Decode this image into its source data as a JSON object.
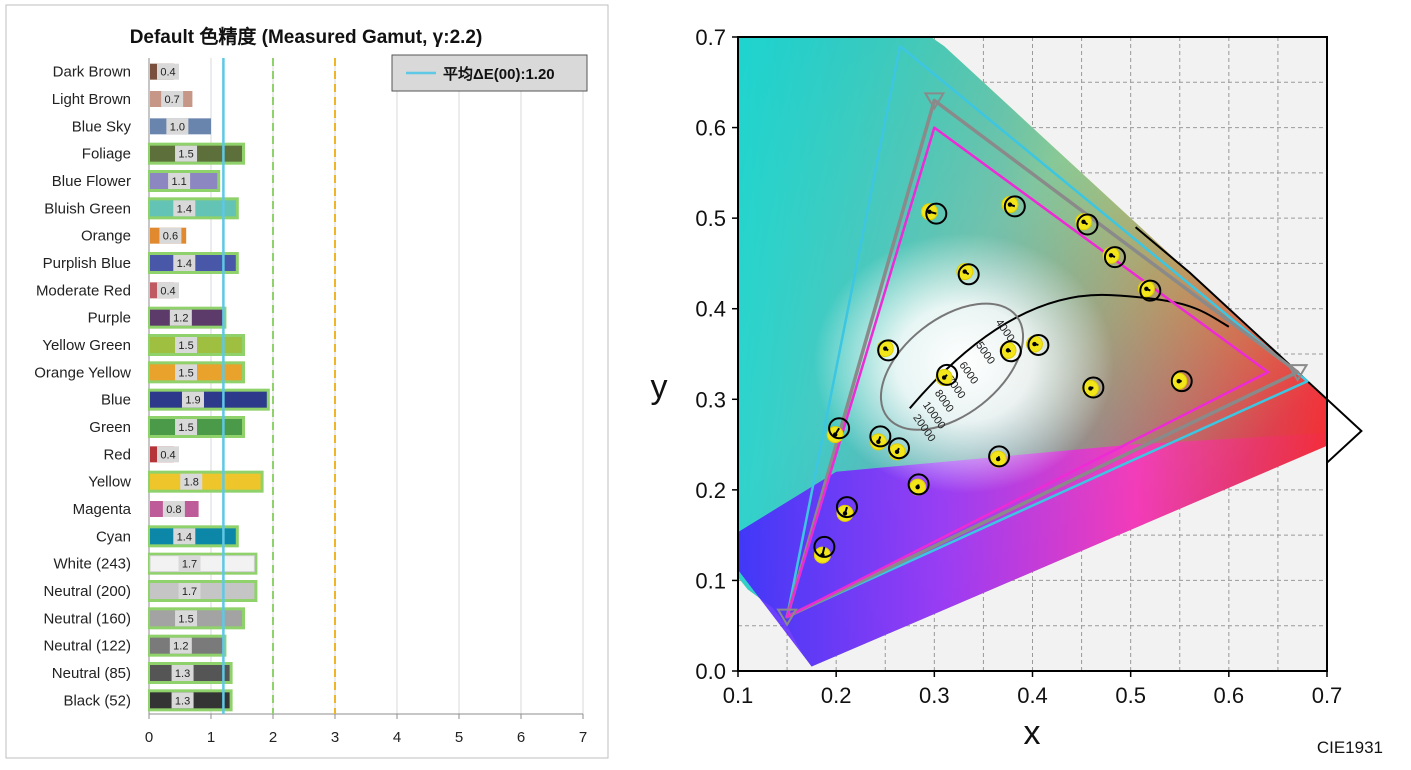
{
  "chart_data": [
    {
      "type": "bar",
      "title": "Default 色精度 (Measured Gamut, γ:2.2)",
      "xlabel": "",
      "ylabel": "",
      "xlim": [
        0,
        7
      ],
      "xticks": [
        "0",
        "1",
        "2",
        "3",
        "4",
        "5",
        "6",
        "7"
      ],
      "grid": true,
      "legend_position": "top-right",
      "reference_lines": [
        {
          "value": 1.2,
          "style": "solid",
          "color": "#5ec8e6",
          "legend": "平均ΔE(00):1.20"
        },
        {
          "value": 2.0,
          "style": "dashed",
          "color": "#8fd16a"
        },
        {
          "value": 3.0,
          "style": "dashed",
          "color": "#f0b429"
        }
      ],
      "categories": [
        "Dark Brown",
        "Light Brown",
        "Blue Sky",
        "Foliage",
        "Blue Flower",
        "Bluish Green",
        "Orange",
        "Purplish Blue",
        "Moderate Red",
        "Purple",
        "Yellow Green",
        "Orange Yellow",
        "Blue",
        "Green",
        "Red",
        "Yellow",
        "Magenta",
        "Cyan",
        "White (243)",
        "Neutral (200)",
        "Neutral (160)",
        "Neutral (122)",
        "Neutral (85)",
        "Black (52)"
      ],
      "values": [
        0.4,
        0.7,
        1.0,
        1.5,
        1.1,
        1.4,
        0.6,
        1.4,
        0.4,
        1.2,
        1.5,
        1.5,
        1.9,
        1.5,
        0.4,
        1.8,
        0.8,
        1.4,
        1.7,
        1.7,
        1.5,
        1.2,
        1.3,
        1.3
      ],
      "value_labels": [
        "0.4",
        "0.7",
        "1.0",
        "1.5",
        "1.1",
        "1.4",
        "0.6",
        "1.4",
        "0.4",
        "1.2",
        "1.5",
        "1.5",
        "1.9",
        "1.5",
        "0.4",
        "1.8",
        "0.8",
        "1.4",
        "1.7",
        "1.7",
        "1.5",
        "1.2",
        "1.3",
        "1.3"
      ],
      "colors": [
        "#7a4f3e",
        "#c69787",
        "#6a85ad",
        "#5d6f3a",
        "#8c87c0",
        "#63c3b4",
        "#e0892f",
        "#4857a8",
        "#c05a62",
        "#5c3b6b",
        "#9fbf41",
        "#e9a22b",
        "#2d3a8c",
        "#4b9a4a",
        "#b5343a",
        "#eec62b",
        "#bd5c98",
        "#0d87a8",
        "#f2f2f2",
        "#c5c5c5",
        "#a3a3a3",
        "#7a7a7a",
        "#555555",
        "#343434"
      ],
      "outline_color": "#8fd16a"
    },
    {
      "type": "scatter",
      "xlabel": "x",
      "ylabel": "y",
      "xlim": [
        0.1,
        0.7
      ],
      "ylim": [
        0.0,
        0.7
      ],
      "xticks": [
        "0.1",
        "0.2",
        "0.3",
        "0.4",
        "0.5",
        "0.6",
        "0.7"
      ],
      "yticks": [
        "0.0",
        "0.1",
        "0.2",
        "0.3",
        "0.4",
        "0.5",
        "0.6",
        "0.7"
      ],
      "grid": true,
      "annotation": "CIE1931",
      "cct_labels": [
        "4000",
        "5000",
        "6000",
        "7000",
        "8000",
        "10000",
        "20000"
      ],
      "gamut_triangles": [
        {
          "name": "cyan",
          "color": "#3cc6e2",
          "points": [
            [
              0.265,
              0.69
            ],
            [
              0.68,
              0.32
            ],
            [
              0.15,
              0.06
            ]
          ]
        },
        {
          "name": "gray",
          "color": "#8a8a8a",
          "points": [
            [
              0.3,
              0.63
            ],
            [
              0.67,
              0.33
            ],
            [
              0.15,
              0.06
            ]
          ]
        },
        {
          "name": "magenta",
          "color": "#ee2ad6",
          "points": [
            [
              0.3,
              0.6
            ],
            [
              0.64,
              0.33
            ],
            [
              0.15,
              0.06
            ]
          ]
        }
      ],
      "points_target": [
        [
          0.302,
          0.505
        ],
        [
          0.382,
          0.513
        ],
        [
          0.456,
          0.493
        ],
        [
          0.484,
          0.457
        ],
        [
          0.335,
          0.438
        ],
        [
          0.52,
          0.42
        ],
        [
          0.406,
          0.36
        ],
        [
          0.378,
          0.353
        ],
        [
          0.253,
          0.354
        ],
        [
          0.313,
          0.327
        ],
        [
          0.462,
          0.313
        ],
        [
          0.552,
          0.32
        ],
        [
          0.203,
          0.268
        ],
        [
          0.245,
          0.259
        ],
        [
          0.264,
          0.246
        ],
        [
          0.366,
          0.237
        ],
        [
          0.284,
          0.206
        ],
        [
          0.211,
          0.181
        ],
        [
          0.188,
          0.137
        ]
      ],
      "points_measured": [
        [
          0.295,
          0.507
        ],
        [
          0.377,
          0.515
        ],
        [
          0.452,
          0.496
        ],
        [
          0.48,
          0.459
        ],
        [
          0.331,
          0.441
        ],
        [
          0.516,
          0.422
        ],
        [
          0.402,
          0.361
        ],
        [
          0.375,
          0.354
        ],
        [
          0.25,
          0.356
        ],
        [
          0.31,
          0.324
        ],
        [
          0.459,
          0.312
        ],
        [
          0.549,
          0.32
        ],
        [
          0.199,
          0.261
        ],
        [
          0.243,
          0.253
        ],
        [
          0.262,
          0.242
        ],
        [
          0.365,
          0.234
        ],
        [
          0.283,
          0.203
        ],
        [
          0.209,
          0.174
        ],
        [
          0.186,
          0.128
        ]
      ]
    }
  ]
}
